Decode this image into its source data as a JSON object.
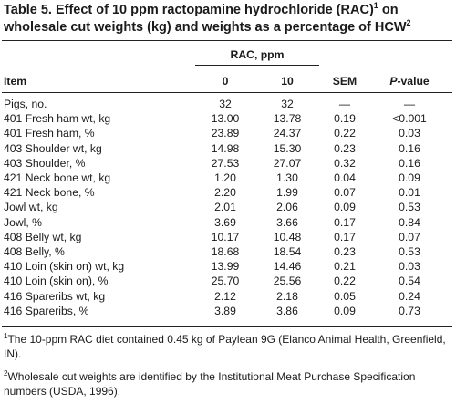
{
  "title": {
    "line1_a": "Table 5. Effect of 10 ppm ractopamine hydrochloride (RAC)",
    "line1_sup": "1",
    "line1_b": " on",
    "line2_a": "wholesale cut weights (kg) and weights as a percentage of HCW",
    "line2_sup": "2"
  },
  "header": {
    "rac_group": "RAC, ppm",
    "item": "Item",
    "col0": "0",
    "col10": "10",
    "sem": "SEM",
    "pvalue_italic": "P",
    "pvalue_rest": "-value"
  },
  "rows": [
    {
      "item": "Pigs, no.",
      "v0": "32",
      "v10": "32",
      "sem": "—",
      "p": "—"
    },
    {
      "item": "401 Fresh ham wt, kg",
      "v0": "13.00",
      "v10": "13.78",
      "sem": "0.19",
      "p": "<0.001"
    },
    {
      "item": "401 Fresh ham, %",
      "v0": "23.89",
      "v10": "24.37",
      "sem": "0.22",
      "p": "0.03"
    },
    {
      "item": "403 Shoulder wt, kg",
      "v0": "14.98",
      "v10": "15.30",
      "sem": "0.23",
      "p": "0.16"
    },
    {
      "item": "403 Shoulder, %",
      "v0": "27.53",
      "v10": "27.07",
      "sem": "0.32",
      "p": "0.16"
    },
    {
      "item": "421 Neck bone wt, kg",
      "v0": "1.20",
      "v10": "1.30",
      "sem": "0.04",
      "p": "0.09"
    },
    {
      "item": "421 Neck bone, %",
      "v0": "2.20",
      "v10": "1.99",
      "sem": "0.07",
      "p": "0.01"
    },
    {
      "item": "Jowl wt, kg",
      "v0": "2.01",
      "v10": "2.06",
      "sem": "0.09",
      "p": "0.53"
    },
    {
      "item": "Jowl, %",
      "v0": "3.69",
      "v10": "3.66",
      "sem": "0.17",
      "p": "0.84"
    },
    {
      "item": "408 Belly wt, kg",
      "v0": "10.17",
      "v10": "10.48",
      "sem": "0.17",
      "p": "0.07"
    },
    {
      "item": "408 Belly, %",
      "v0": "18.68",
      "v10": "18.54",
      "sem": "0.23",
      "p": "0.53"
    },
    {
      "item": "410 Loin (skin on) wt, kg",
      "v0": "13.99",
      "v10": "14.46",
      "sem": "0.21",
      "p": "0.03"
    },
    {
      "item": "410 Loin (skin on), %",
      "v0": "25.70",
      "v10": "25.56",
      "sem": "0.22",
      "p": "0.54"
    },
    {
      "item": "416 Spareribs wt, kg",
      "v0": "2.12",
      "v10": "2.18",
      "sem": "0.05",
      "p": "0.24"
    },
    {
      "item": "416 Spareribs, %",
      "v0": "3.89",
      "v10": "3.86",
      "sem": "0.09",
      "p": "0.73"
    }
  ],
  "footnotes": [
    {
      "sup": "1",
      "text": "The 10-ppm RAC diet contained 0.45 kg of Paylean 9G (Elanco Animal Health, Greenfield, IN)."
    },
    {
      "sup": "2",
      "text": "Wholesale cut weights are identified by the Institutional Meat Purchase Specification numbers (USDA, 1996)."
    }
  ]
}
